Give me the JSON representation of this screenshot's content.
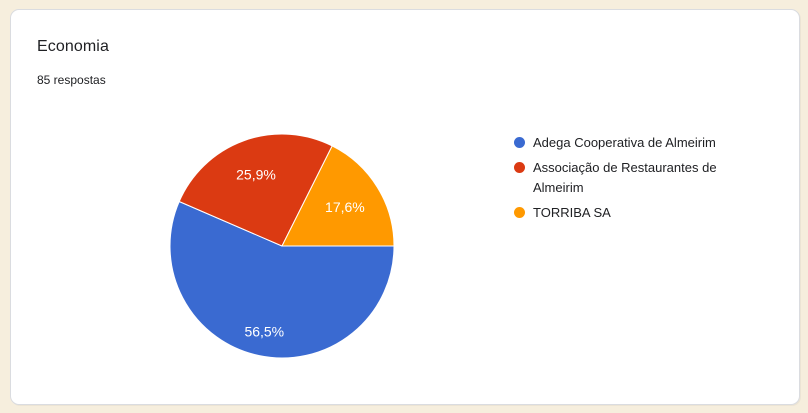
{
  "page": {
    "background_color": "#f6eedd",
    "card_background": "#ffffff"
  },
  "chart_data": {
    "type": "pie",
    "title": "Economia",
    "subtitle": "85 respostas",
    "responses": 85,
    "legend_position": "right",
    "start_angle_deg": 0,
    "direction": "clockwise",
    "slices": [
      {
        "label": "Adega Cooperativa de Almeirim",
        "value": 56.5,
        "display": "56,5%",
        "color": "#3a6ad1"
      },
      {
        "label": "Associação de Restaurantes de Almeirim",
        "value": 25.9,
        "display": "25,9%",
        "color": "#db3a12"
      },
      {
        "label": "TORRIBA SA",
        "value": 17.6,
        "display": "17,6%",
        "color": "#ff9900"
      }
    ]
  }
}
